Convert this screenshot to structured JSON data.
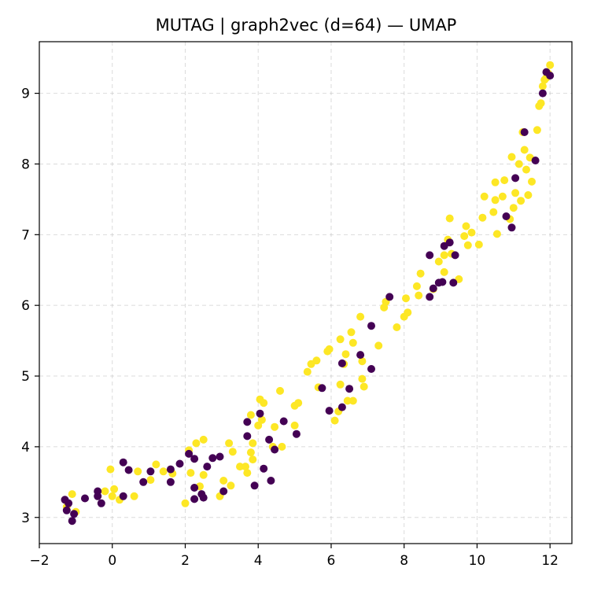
{
  "chart_data": {
    "type": "scatter",
    "title": "MUTAG | graph2vec (d=64) — UMAP",
    "xlabel": "",
    "ylabel": "",
    "xlim": [
      -2,
      12.6
    ],
    "ylim": [
      2.63,
      9.73
    ],
    "x_ticks": [
      -2,
      0,
      2,
      4,
      6,
      8,
      10,
      12
    ],
    "y_ticks": [
      3,
      4,
      5,
      6,
      7,
      8,
      9
    ],
    "grid": true,
    "colors": {
      "class_0": "#440154",
      "class_1": "#fde725"
    },
    "series": [
      {
        "points": [
          [
            -1.3,
            3.25
          ],
          [
            -1.2,
            3.2
          ],
          [
            -1.25,
            3.1
          ],
          [
            -1.05,
            3.05
          ],
          [
            -1.1,
            2.95
          ],
          [
            -0.75,
            3.27
          ],
          [
            -0.4,
            3.37
          ],
          [
            -0.4,
            3.3
          ],
          [
            -0.3,
            3.2
          ],
          [
            0.3,
            3.3
          ],
          [
            0.3,
            3.78
          ],
          [
            0.45,
            3.67
          ],
          [
            0.85,
            3.5
          ],
          [
            1.05,
            3.65
          ],
          [
            1.6,
            3.68
          ],
          [
            1.6,
            3.5
          ],
          [
            1.85,
            3.76
          ],
          [
            2.1,
            3.9
          ],
          [
            2.25,
            3.83
          ],
          [
            2.25,
            3.42
          ],
          [
            2.25,
            3.26
          ],
          [
            2.45,
            3.33
          ],
          [
            2.5,
            3.28
          ],
          [
            2.6,
            3.72
          ],
          [
            2.75,
            3.84
          ],
          [
            2.95,
            3.86
          ],
          [
            3.05,
            3.37
          ],
          [
            3.7,
            4.35
          ],
          [
            3.7,
            4.15
          ],
          [
            3.9,
            3.45
          ],
          [
            4.05,
            4.47
          ],
          [
            4.15,
            3.69
          ],
          [
            4.3,
            4.1
          ],
          [
            4.35,
            3.52
          ],
          [
            4.45,
            3.96
          ],
          [
            4.7,
            4.36
          ],
          [
            5.05,
            4.18
          ],
          [
            5.75,
            4.83
          ],
          [
            5.95,
            4.51
          ],
          [
            6.3,
            4.56
          ],
          [
            6.3,
            5.18
          ],
          [
            6.5,
            4.82
          ],
          [
            6.8,
            5.3
          ],
          [
            7.1,
            5.71
          ],
          [
            7.1,
            5.1
          ],
          [
            7.6,
            6.12
          ],
          [
            8.7,
            6.71
          ],
          [
            8.7,
            6.12
          ],
          [
            8.8,
            6.24
          ],
          [
            8.95,
            6.32
          ],
          [
            9.05,
            6.33
          ],
          [
            9.1,
            6.84
          ],
          [
            9.25,
            6.89
          ],
          [
            9.35,
            6.32
          ],
          [
            9.4,
            6.71
          ],
          [
            10.8,
            7.26
          ],
          [
            10.95,
            7.1
          ],
          [
            11.05,
            7.8
          ],
          [
            11.3,
            8.45
          ],
          [
            11.6,
            8.05
          ],
          [
            11.8,
            9.0
          ],
          [
            11.9,
            9.3
          ],
          [
            12.0,
            9.25
          ]
        ]
      },
      {
        "points": [
          [
            -1.25,
            3.15
          ],
          [
            -1.1,
            3.33
          ],
          [
            -1.0,
            3.08
          ],
          [
            -0.2,
            3.37
          ],
          [
            -0.05,
            3.68
          ],
          [
            0.0,
            3.3
          ],
          [
            0.05,
            3.4
          ],
          [
            0.2,
            3.25
          ],
          [
            0.6,
            3.3
          ],
          [
            0.7,
            3.65
          ],
          [
            1.05,
            3.53
          ],
          [
            1.2,
            3.75
          ],
          [
            1.4,
            3.65
          ],
          [
            1.65,
            3.62
          ],
          [
            2.0,
            3.2
          ],
          [
            2.1,
            3.95
          ],
          [
            2.15,
            3.63
          ],
          [
            2.3,
            4.05
          ],
          [
            2.4,
            3.44
          ],
          [
            2.5,
            4.1
          ],
          [
            2.5,
            3.6
          ],
          [
            2.95,
            3.3
          ],
          [
            3.05,
            3.52
          ],
          [
            3.2,
            4.05
          ],
          [
            3.25,
            3.45
          ],
          [
            3.3,
            3.93
          ],
          [
            3.5,
            3.72
          ],
          [
            3.65,
            3.72
          ],
          [
            3.7,
            3.63
          ],
          [
            3.8,
            3.92
          ],
          [
            3.8,
            4.45
          ],
          [
            3.85,
            4.05
          ],
          [
            3.85,
            3.82
          ],
          [
            4.0,
            4.3
          ],
          [
            4.05,
            4.67
          ],
          [
            4.1,
            4.38
          ],
          [
            4.15,
            4.62
          ],
          [
            4.4,
            4.0
          ],
          [
            4.45,
            4.28
          ],
          [
            4.6,
            4.79
          ],
          [
            4.65,
            4.0
          ],
          [
            5.0,
            4.3
          ],
          [
            5.0,
            4.58
          ],
          [
            5.1,
            4.62
          ],
          [
            5.35,
            5.06
          ],
          [
            5.45,
            5.17
          ],
          [
            5.6,
            5.22
          ],
          [
            5.65,
            4.84
          ],
          [
            5.9,
            5.35
          ],
          [
            5.95,
            5.38
          ],
          [
            6.1,
            4.37
          ],
          [
            6.2,
            4.5
          ],
          [
            6.25,
            4.88
          ],
          [
            6.25,
            5.52
          ],
          [
            6.35,
            5.17
          ],
          [
            6.4,
            5.31
          ],
          [
            6.45,
            4.65
          ],
          [
            6.55,
            5.62
          ],
          [
            6.6,
            5.47
          ],
          [
            6.6,
            4.65
          ],
          [
            6.8,
            5.84
          ],
          [
            6.85,
            4.96
          ],
          [
            6.9,
            4.85
          ],
          [
            6.85,
            5.21
          ],
          [
            7.3,
            5.43
          ],
          [
            7.45,
            5.97
          ],
          [
            7.5,
            6.05
          ],
          [
            7.8,
            5.69
          ],
          [
            8.0,
            5.84
          ],
          [
            8.05,
            6.1
          ],
          [
            8.1,
            5.9
          ],
          [
            8.35,
            6.27
          ],
          [
            8.45,
            6.45
          ],
          [
            8.4,
            6.14
          ],
          [
            8.8,
            6.23
          ],
          [
            8.95,
            6.62
          ],
          [
            9.1,
            6.71
          ],
          [
            9.1,
            6.47
          ],
          [
            9.2,
            6.93
          ],
          [
            9.25,
            7.23
          ],
          [
            9.3,
            6.73
          ],
          [
            9.5,
            6.37
          ],
          [
            9.65,
            6.98
          ],
          [
            9.7,
            7.12
          ],
          [
            9.75,
            6.85
          ],
          [
            9.85,
            7.03
          ],
          [
            10.05,
            6.86
          ],
          [
            10.15,
            7.24
          ],
          [
            10.2,
            7.54
          ],
          [
            10.5,
            7.49
          ],
          [
            10.45,
            7.32
          ],
          [
            10.5,
            7.74
          ],
          [
            10.55,
            7.01
          ],
          [
            10.7,
            7.54
          ],
          [
            10.75,
            7.77
          ],
          [
            10.9,
            7.22
          ],
          [
            10.95,
            8.1
          ],
          [
            11.0,
            7.38
          ],
          [
            11.05,
            7.59
          ],
          [
            11.15,
            8.0
          ],
          [
            11.2,
            7.48
          ],
          [
            11.25,
            8.45
          ],
          [
            11.3,
            8.2
          ],
          [
            11.35,
            7.92
          ],
          [
            11.4,
            7.56
          ],
          [
            11.45,
            8.09
          ],
          [
            11.5,
            7.75
          ],
          [
            11.65,
            8.48
          ],
          [
            11.7,
            8.82
          ],
          [
            11.75,
            8.86
          ],
          [
            11.8,
            9.1
          ],
          [
            11.85,
            9.19
          ],
          [
            11.9,
            9.22
          ],
          [
            11.95,
            9.28
          ],
          [
            12.0,
            9.4
          ]
        ]
      }
    ]
  }
}
